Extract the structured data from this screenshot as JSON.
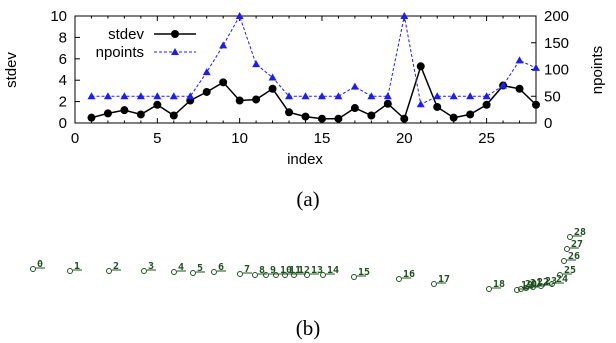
{
  "chart_data": [
    {
      "type": "line",
      "caption": "(a)",
      "xlabel": "index",
      "ylabel_left": "stdev",
      "ylabel_right": "npoints",
      "xlim": [
        0,
        28
      ],
      "ylim_left": [
        0,
        10
      ],
      "ylim_right": [
        0,
        200
      ],
      "x_ticks": [
        0,
        5,
        10,
        15,
        20,
        25
      ],
      "y_left_ticks": [
        0,
        2,
        4,
        6,
        8,
        10
      ],
      "y_right_ticks": [
        0,
        50,
        100,
        150,
        200
      ],
      "legend_position": "top-left",
      "grid": false,
      "series": [
        {
          "name": "stdev",
          "axis": "left",
          "style": "solid line, filled circles",
          "color": "#000000",
          "x": [
            1,
            2,
            3,
            4,
            5,
            6,
            7,
            8,
            9,
            10,
            11,
            12,
            13,
            14,
            15,
            16,
            17,
            18,
            19,
            20,
            21,
            22,
            23,
            24,
            25,
            26,
            27,
            28
          ],
          "values": [
            0.5,
            0.9,
            1.2,
            0.8,
            1.7,
            0.7,
            2.1,
            2.9,
            3.8,
            2.1,
            2.2,
            3.2,
            1.0,
            0.6,
            0.4,
            0.4,
            1.4,
            0.7,
            1.8,
            0.4,
            5.3,
            1.5,
            0.5,
            0.8,
            1.7,
            3.5,
            3.2,
            1.7
          ]
        },
        {
          "name": "npoints",
          "axis": "right",
          "style": "dashed line, triangles",
          "color": "#1f1fe0",
          "x": [
            1,
            2,
            3,
            4,
            5,
            6,
            7,
            8,
            9,
            10,
            11,
            12,
            13,
            14,
            15,
            16,
            17,
            18,
            19,
            20,
            21,
            22,
            23,
            24,
            25,
            26,
            27,
            28
          ],
          "values": [
            50,
            50,
            50,
            50,
            50,
            50,
            50,
            95,
            145,
            200,
            110,
            85,
            50,
            50,
            50,
            50,
            68,
            50,
            50,
            200,
            35,
            50,
            50,
            50,
            50,
            70,
            117,
            103
          ]
        }
      ]
    },
    {
      "type": "scatter",
      "caption": "(b)",
      "color": "#1f4f1f",
      "points": [
        {
          "label": "0"
        },
        {
          "label": "1"
        },
        {
          "label": "2"
        },
        {
          "label": "3"
        },
        {
          "label": "4"
        },
        {
          "label": "5"
        },
        {
          "label": "6"
        },
        {
          "label": "7"
        },
        {
          "label": "8"
        },
        {
          "label": "9"
        },
        {
          "label": "10"
        },
        {
          "label": "11"
        },
        {
          "label": "12"
        },
        {
          "label": "13"
        },
        {
          "label": "14"
        },
        {
          "label": "15"
        },
        {
          "label": "16"
        },
        {
          "label": "17"
        },
        {
          "label": "18"
        },
        {
          "label": "19"
        },
        {
          "label": "20"
        },
        {
          "label": "21"
        },
        {
          "label": "22"
        },
        {
          "label": "23"
        },
        {
          "label": "24"
        },
        {
          "label": "25"
        },
        {
          "label": "26"
        },
        {
          "label": "27"
        },
        {
          "label": "28"
        }
      ]
    }
  ]
}
